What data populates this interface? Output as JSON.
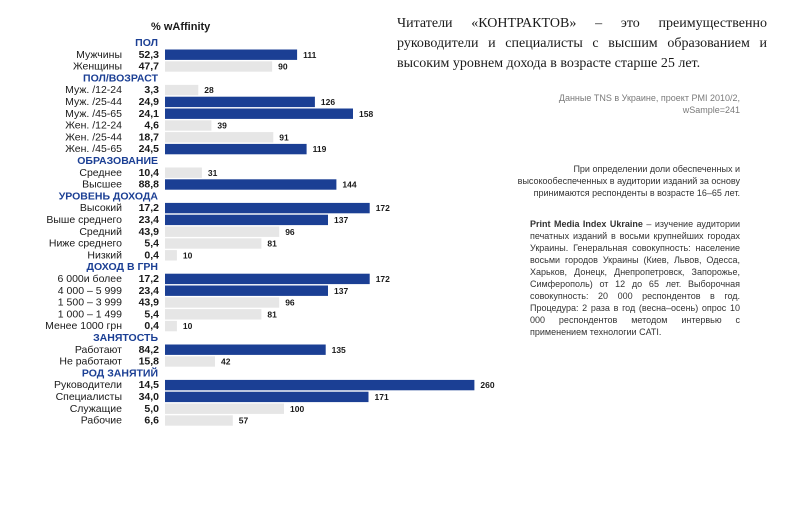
{
  "header": {
    "metric_label": "% wAffinity"
  },
  "headline": "Читатели «КОНТРАКТОВ» – это преимущественно руководители и специалисты с высшим образованием и высоким уровнем дохода в возрасте старше 25 лет.",
  "source": {
    "line1": "Данные TNS в Украине, проект PMI 2010/2,",
    "line2": "wSample=241"
  },
  "note1": "При определении доли обеспеченных и высокообеспеченных в аудитории изданий за основу принимаются респонденты в возрасте 16–65 лет.",
  "note2": {
    "title": "Print Media Index Ukraine",
    "text": " – изучение аудитории печатных изданий в восьми крупнейших городах Украины. Генеральная совокупность: население восьми городов Украины (Киев, Львов, Одесса, Харьков, Донецк, Днепропетровск, Запорожье, Симферополь) от 12 до 65 лет. Выборочная совокупность: 20 000 респондентов в год. Процедура: 2 раза в год (весна–осень) опрос 10 000 респондентов методом интервью с применением технологии CATI."
  },
  "colors": {
    "above": "#1b3f94",
    "below": "#e6e6e6",
    "section": "#1b3f94"
  },
  "chart_data": {
    "type": "bar",
    "orientation": "horizontal",
    "value_name": "% wAffinity",
    "xlim": [
      0,
      260
    ],
    "grid": false,
    "legend": "none",
    "sections": [
      {
        "title": "ПОЛ",
        "rows": [
          {
            "label": "Мужчины",
            "pct": "52,3",
            "affinity": 111
          },
          {
            "label": "Женщины",
            "pct": "47,7",
            "affinity": 90
          }
        ]
      },
      {
        "title": "ПОЛ/ВОЗРАСТ",
        "rows": [
          {
            "label": "Муж. /12-24",
            "pct": "3,3",
            "affinity": 28
          },
          {
            "label": "Муж. /25-44",
            "pct": "24,9",
            "affinity": 126
          },
          {
            "label": "Муж. /45-65",
            "pct": "24,1",
            "affinity": 158
          },
          {
            "label": "Жен. /12-24",
            "pct": "4,6",
            "affinity": 39
          },
          {
            "label": "Жен. /25-44",
            "pct": "18,7",
            "affinity": 91
          },
          {
            "label": "Жен. /45-65",
            "pct": "24,5",
            "affinity": 119
          }
        ]
      },
      {
        "title": "ОБРАЗОВАНИЕ",
        "rows": [
          {
            "label": "Среднее",
            "pct": "10,4",
            "affinity": 31
          },
          {
            "label": "Высшее",
            "pct": "88,8",
            "affinity": 144
          }
        ]
      },
      {
        "title": "УРОВЕНЬ ДОХОДА",
        "rows": [
          {
            "label": "Высокий",
            "pct": "17,2",
            "affinity": 172
          },
          {
            "label": "Выше среднего",
            "pct": "23,4",
            "affinity": 137
          },
          {
            "label": "Средний",
            "pct": "43,9",
            "affinity": 96
          },
          {
            "label": "Ниже среднего",
            "pct": "5,4",
            "affinity": 81
          },
          {
            "label": "Низкий",
            "pct": "0,4",
            "affinity": 10
          }
        ]
      },
      {
        "title": "ДОХОД В ГРН",
        "rows": [
          {
            "label": "6 000и более",
            "pct": "17,2",
            "affinity": 172
          },
          {
            "label": "4 000 – 5 999",
            "pct": "23,4",
            "affinity": 137
          },
          {
            "label": "1 500 – 3 999",
            "pct": "43,9",
            "affinity": 96
          },
          {
            "label": "1 000 – 1 499",
            "pct": "5,4",
            "affinity": 81
          },
          {
            "label": "Менее 1000 грн",
            "pct": "0,4",
            "affinity": 10
          }
        ]
      },
      {
        "title": "ЗАНЯТОСТЬ",
        "rows": [
          {
            "label": "Работают",
            "pct": "84,2",
            "affinity": 135
          },
          {
            "label": "Не работают",
            "pct": "15,8",
            "affinity": 42
          }
        ]
      },
      {
        "title": "РОД ЗАНЯТИЙ",
        "rows": [
          {
            "label": "Руководители",
            "pct": "14,5",
            "affinity": 260
          },
          {
            "label": "Специалисты",
            "pct": "34,0",
            "affinity": 171
          },
          {
            "label": "Служащие",
            "pct": "5,0",
            "affinity": 100
          },
          {
            "label": "Рабочие",
            "pct": "6,6",
            "affinity": 57
          }
        ]
      }
    ]
  }
}
